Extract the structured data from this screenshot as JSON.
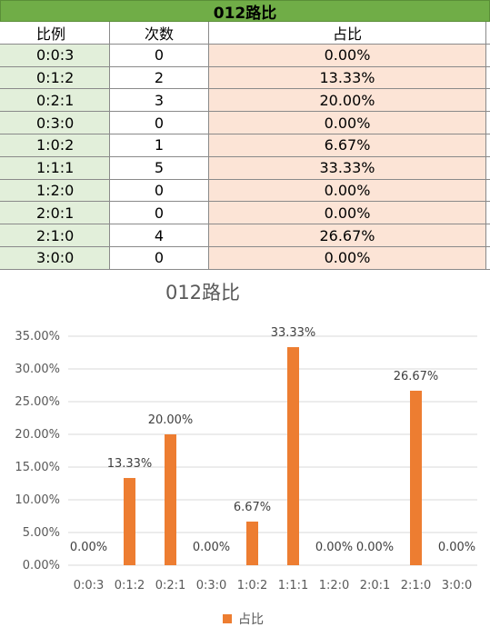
{
  "sheet": {
    "title": "012路比",
    "headers": [
      "比例",
      "次数",
      "占比"
    ],
    "rows": [
      [
        "0:0:3",
        "0",
        "0.00%"
      ],
      [
        "0:1:2",
        "2",
        "13.33%"
      ],
      [
        "0:2:1",
        "3",
        "20.00%"
      ],
      [
        "0:3:0",
        "0",
        "0.00%"
      ],
      [
        "1:0:2",
        "1",
        "6.67%"
      ],
      [
        "1:1:1",
        "5",
        "33.33%"
      ],
      [
        "1:2:0",
        "0",
        "0.00%"
      ],
      [
        "2:0:1",
        "0",
        "0.00%"
      ],
      [
        "2:1:0",
        "4",
        "26.67%"
      ],
      [
        "3:0:0",
        "0",
        "0.00%"
      ]
    ]
  },
  "chart_data": {
    "type": "bar",
    "title": "012路比",
    "categories": [
      "0:0:3",
      "0:1:2",
      "0:2:1",
      "0:3:0",
      "1:0:2",
      "1:1:1",
      "1:2:0",
      "2:0:1",
      "2:1:0",
      "3:0:0"
    ],
    "series": [
      {
        "name": "占比",
        "values": [
          0,
          13.33,
          20.0,
          0,
          6.67,
          33.33,
          0,
          0,
          26.67,
          0
        ]
      }
    ],
    "data_labels": [
      "0.00%",
      "13.33%",
      "20.00%",
      "0.00%",
      "6.67%",
      "33.33%",
      "0.00%",
      "0.00%",
      "26.67%",
      "0.00%"
    ],
    "y_ticks": [
      "0.00%",
      "5.00%",
      "10.00%",
      "15.00%",
      "20.00%",
      "25.00%",
      "30.00%",
      "35.00%"
    ],
    "ylim": [
      0,
      35
    ],
    "grid": true,
    "legend": "bottom",
    "colors": {
      "bar": "#ed7d31",
      "grid": "#d9d9d9",
      "header": "#70ad47"
    }
  }
}
